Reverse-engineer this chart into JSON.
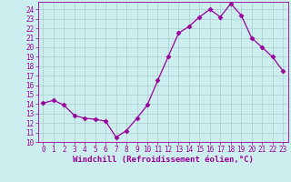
{
  "x": [
    0,
    1,
    2,
    3,
    4,
    5,
    6,
    7,
    8,
    9,
    10,
    11,
    12,
    13,
    14,
    15,
    16,
    17,
    18,
    19,
    20,
    21,
    22,
    23
  ],
  "y": [
    14.1,
    14.4,
    13.9,
    12.8,
    12.5,
    12.4,
    12.2,
    10.5,
    11.2,
    12.5,
    13.9,
    16.5,
    19.0,
    21.5,
    22.2,
    23.2,
    24.0,
    23.2,
    24.6,
    23.4,
    21.0,
    20.0,
    19.0,
    17.5
  ],
  "line_color": "#990099",
  "marker": "D",
  "marker_size": 2.5,
  "bg_color": "#cceeee",
  "grid_color": "#aacccc",
  "xlabel": "Windchill (Refroidissement éolien,°C)",
  "xlim": [
    -0.5,
    23.5
  ],
  "ylim": [
    10,
    24.8
  ],
  "yticks": [
    10,
    11,
    12,
    13,
    14,
    15,
    16,
    17,
    18,
    19,
    20,
    21,
    22,
    23,
    24
  ],
  "xticks": [
    0,
    1,
    2,
    3,
    4,
    5,
    6,
    7,
    8,
    9,
    10,
    11,
    12,
    13,
    14,
    15,
    16,
    17,
    18,
    19,
    20,
    21,
    22,
    23
  ],
  "tick_label_size": 5.5,
  "xlabel_size": 6.5
}
